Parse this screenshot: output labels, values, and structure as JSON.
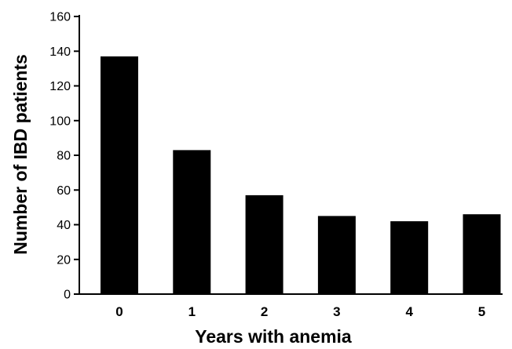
{
  "chart_data": {
    "type": "bar",
    "categories": [
      "0",
      "1",
      "2",
      "3",
      "4",
      "5"
    ],
    "values": [
      137,
      83,
      57,
      45,
      42,
      46
    ],
    "title": "",
    "xlabel": "Years with anemia",
    "ylabel": "Number of IBD patients",
    "ylim": [
      0,
      160
    ],
    "yticks": [
      0,
      20,
      40,
      60,
      80,
      100,
      120,
      140,
      160
    ],
    "grid": false,
    "legend": "none",
    "bar_color": "#000000"
  }
}
